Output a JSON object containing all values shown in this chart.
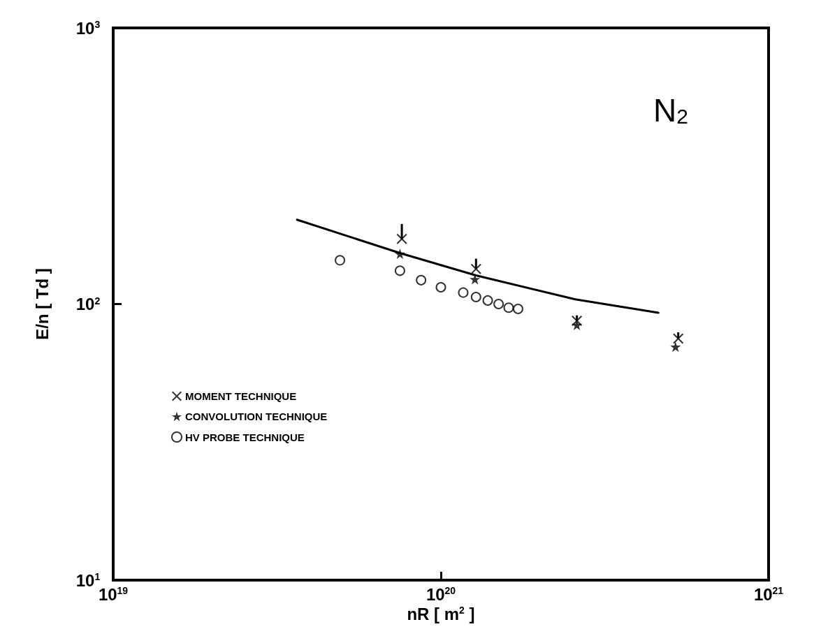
{
  "chart_data": {
    "type": "scatter",
    "xlabel": "nR [ m$^{2}$ ]",
    "ylabel": "E/n [ Td ]",
    "annotations": [
      "N$_{2}$"
    ],
    "log": "xy",
    "xlim": [
      1e+19,
      1e+21
    ],
    "ylim": [
      10,
      1000
    ],
    "xticks": [
      {
        "value": 1e+19,
        "label": "10$^{19}$"
      },
      {
        "value": 1e+20,
        "label": "10$^{20}$"
      },
      {
        "value": 1e+21,
        "label": "10$^{21}$"
      }
    ],
    "yticks": [
      {
        "value": 10,
        "label": "10$^{1}$"
      },
      {
        "value": 100,
        "label": "10$^{2}$"
      },
      {
        "value": 1000,
        "label": "10$^{3}$"
      }
    ],
    "grid": false,
    "legend": "left",
    "series": [
      {
        "type": "line",
        "color": "#000000",
        "marker": "none",
        "line_style": "solid",
        "x": [
          3.64e+19,
          7.5e+19,
          1.28e+20,
          2.57e+20,
          4.61e+20
        ],
        "values": [
          202,
          153,
          127,
          104,
          93
        ]
      },
      {
        "name": "MOMENT TECHNIQUE",
        "color": "#000000",
        "marker": "cross",
        "x": [
          7.6e+19,
          1.28e+20,
          2.6e+20,
          5.3e+20
        ],
        "values": [
          172,
          134,
          87,
          75
        ],
        "errors": [
          [
            172,
            195
          ],
          [
            134,
            146
          ],
          [
            87,
            91
          ],
          [
            75,
            79
          ]
        ]
      },
      {
        "name": "CONVOLUTION TECHNIQUE",
        "color": "#000000",
        "marker": "star",
        "x": [
          7.5e+19,
          1.27e+20,
          2.6e+20,
          5.2e+20
        ],
        "values": [
          152,
          123,
          84,
          70
        ]
      },
      {
        "name": "HV PROBE TECHNIQUE",
        "color": "#000000",
        "marker": "circle",
        "x": [
          4.92e+19,
          7.5e+19,
          8.7e+19,
          1e+20,
          1.17e+20,
          1.28e+20,
          1.39e+20,
          1.5e+20,
          1.61e+20,
          1.72e+20
        ],
        "values": [
          144,
          132,
          122,
          115,
          110,
          106,
          103,
          100,
          97,
          96
        ]
      }
    ]
  }
}
